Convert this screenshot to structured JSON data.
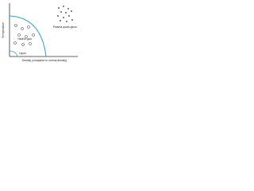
{
  "diagram": {
    "axes": {
      "y_label": "Temperature",
      "x_label": "Density (compared to normal density)"
    },
    "regions": [
      {
        "label": "Plasma quark-gluon"
      },
      {
        "label": "Hadron gas"
      },
      {
        "label": "Liquid"
      }
    ]
  }
}
